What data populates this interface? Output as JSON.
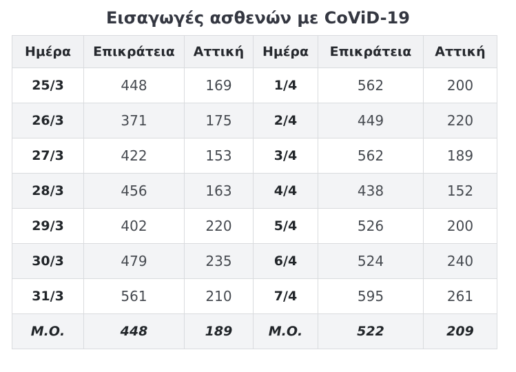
{
  "title": "Εισαγωγές ασθενών με CoViD-19",
  "colors": {
    "title_text": "#343741",
    "header_bg": "#f1f2f4",
    "header_text": "#26292e",
    "stripe_bg": "#f3f4f6",
    "border": "#d9dbde",
    "day_text": "#212529",
    "value_text": "#45494f",
    "page_bg": "#ffffff"
  },
  "table": {
    "columns": [
      {
        "label": "Ημέρα"
      },
      {
        "label": "Επικράτεια"
      },
      {
        "label": "Αττική"
      },
      {
        "label": "Ημέρα"
      },
      {
        "label": "Επικράτεια"
      },
      {
        "label": "Αττική"
      }
    ],
    "rows": [
      {
        "cells": [
          "25/3",
          "448",
          "169",
          "1/4",
          "562",
          "200"
        ]
      },
      {
        "cells": [
          "26/3",
          "371",
          "175",
          "2/4",
          "449",
          "220"
        ]
      },
      {
        "cells": [
          "27/3",
          "422",
          "153",
          "3/4",
          "562",
          "189"
        ]
      },
      {
        "cells": [
          "28/3",
          "456",
          "163",
          "4/4",
          "438",
          "152"
        ]
      },
      {
        "cells": [
          "29/3",
          "402",
          "220",
          "5/4",
          "526",
          "200"
        ]
      },
      {
        "cells": [
          "30/3",
          "479",
          "235",
          "6/4",
          "524",
          "240"
        ]
      },
      {
        "cells": [
          "31/3",
          "561",
          "210",
          "7/4",
          "595",
          "261"
        ]
      },
      {
        "cells": [
          "Μ.Ο.",
          "448",
          "189",
          "Μ.Ο.",
          "522",
          "209"
        ],
        "is_average": true
      }
    ]
  },
  "chart_data": {
    "type": "table",
    "title": "Εισαγωγές ασθενών με CoViD-19",
    "columns": [
      "Ημέρα",
      "Επικράτεια",
      "Αττική"
    ],
    "days": [
      "25/3",
      "26/3",
      "27/3",
      "28/3",
      "29/3",
      "30/3",
      "31/3",
      "1/4",
      "2/4",
      "3/4",
      "4/4",
      "5/4",
      "6/4",
      "7/4"
    ],
    "series": [
      {
        "name": "Επικράτεια",
        "values": [
          448,
          371,
          422,
          456,
          402,
          479,
          561,
          562,
          449,
          562,
          438,
          526,
          524,
          595
        ]
      },
      {
        "name": "Αττική",
        "values": [
          169,
          175,
          153,
          163,
          220,
          235,
          210,
          200,
          220,
          189,
          152,
          200,
          240,
          261
        ]
      }
    ],
    "averages": {
      "label": "Μ.Ο.",
      "group_1": {
        "Επικράτεια": 448,
        "Αττική": 189
      },
      "group_2": {
        "Επικράτεια": 522,
        "Αττική": 209
      }
    },
    "layout": {
      "grid": "bordered",
      "striped_rows": true,
      "two_column_groups": true
    }
  }
}
